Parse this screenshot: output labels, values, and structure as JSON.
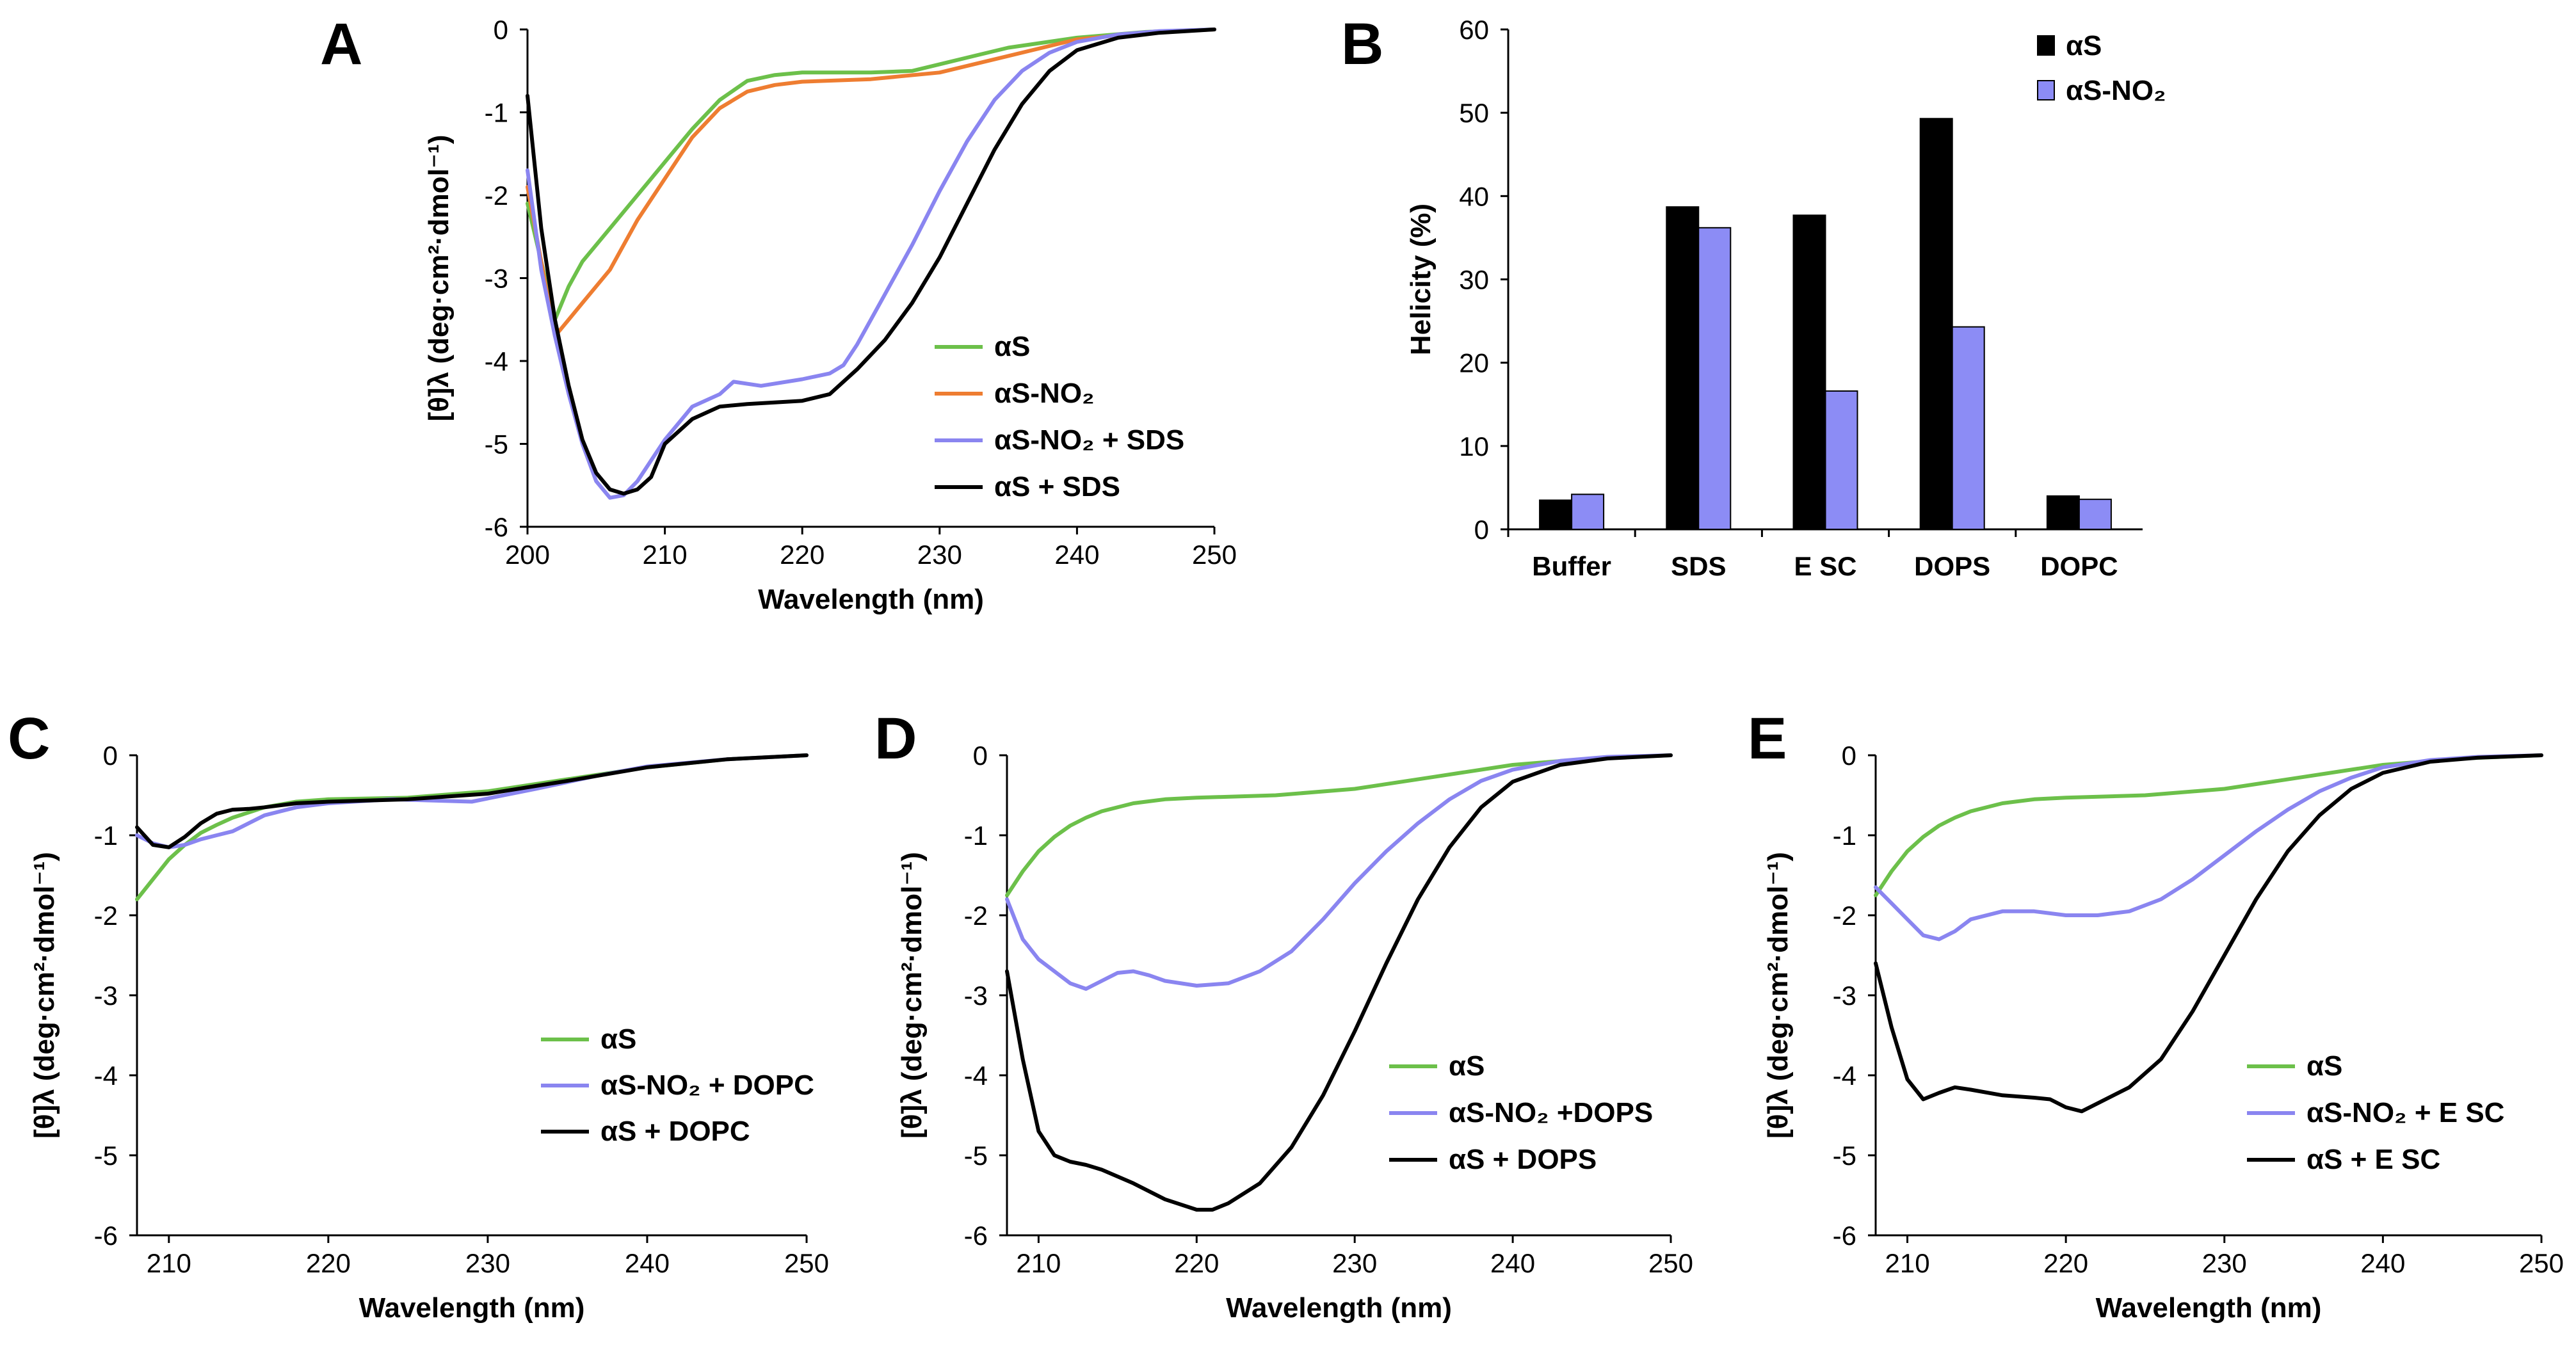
{
  "colors": {
    "green": "#6cc04a",
    "orange": "#ee7d31",
    "purple": "#8a85f0",
    "black": "#000000",
    "bar_black": "#000000",
    "bar_purple": "#8c8cf5"
  },
  "chart_data": [
    {
      "id": "A",
      "panel_label": "A",
      "type": "line",
      "title": "",
      "xlabel": "Wavelength (nm)",
      "ylabel": "[θ]λ (deg·cm²·dmol⁻¹)",
      "xlim": [
        200,
        250
      ],
      "ylim": [
        -6,
        0
      ],
      "xticks": [
        200,
        210,
        220,
        230,
        240,
        250
      ],
      "yticks": [
        0,
        -1,
        -2,
        -3,
        -4,
        -5,
        -6
      ],
      "legend_position": "lower-right",
      "series": [
        {
          "name": "αS",
          "color": "#6cc04a",
          "x": [
            200,
            202,
            203,
            204,
            206,
            208,
            210,
            212,
            214,
            216,
            218,
            220,
            225,
            228,
            230,
            235,
            240,
            245,
            250
          ],
          "y": [
            -2.1,
            -3.5,
            -3.1,
            -2.8,
            -2.4,
            -2.0,
            -1.6,
            -1.2,
            -0.85,
            -0.62,
            -0.55,
            -0.52,
            -0.52,
            -0.5,
            -0.42,
            -0.22,
            -0.1,
            -0.03,
            0
          ]
        },
        {
          "name": "αS-NO₂",
          "color": "#ee7d31",
          "x": [
            200,
            202,
            203,
            204,
            206,
            208,
            210,
            212,
            214,
            216,
            218,
            220,
            225,
            230,
            235,
            240,
            245,
            250
          ],
          "y": [
            -1.9,
            -3.7,
            -3.5,
            -3.3,
            -2.9,
            -2.3,
            -1.8,
            -1.3,
            -0.95,
            -0.75,
            -0.67,
            -0.63,
            -0.6,
            -0.52,
            -0.32,
            -0.12,
            -0.04,
            0
          ]
        },
        {
          "name": "αS-NO₂ + SDS",
          "color": "#8a85f0",
          "x": [
            200,
            201,
            202,
            203,
            204,
            205,
            206,
            207,
            208,
            209,
            210,
            212,
            214,
            215,
            217,
            220,
            222,
            223,
            224,
            226,
            228,
            230,
            232,
            234,
            236,
            238,
            240,
            243,
            246,
            250
          ],
          "y": [
            -1.7,
            -2.9,
            -3.7,
            -4.4,
            -5.0,
            -5.45,
            -5.65,
            -5.62,
            -5.45,
            -5.2,
            -4.95,
            -4.55,
            -4.4,
            -4.25,
            -4.3,
            -4.22,
            -4.15,
            -4.05,
            -3.8,
            -3.2,
            -2.6,
            -1.95,
            -1.35,
            -0.85,
            -0.5,
            -0.28,
            -0.15,
            -0.06,
            -0.02,
            0
          ]
        },
        {
          "name": "αS + SDS",
          "color": "#000000",
          "x": [
            200,
            201,
            202,
            203,
            204,
            205,
            206,
            207,
            208,
            209,
            210,
            212,
            214,
            216,
            218,
            220,
            222,
            224,
            226,
            228,
            230,
            232,
            234,
            236,
            238,
            240,
            243,
            246,
            250
          ],
          "y": [
            -0.8,
            -2.4,
            -3.5,
            -4.3,
            -4.95,
            -5.35,
            -5.55,
            -5.6,
            -5.55,
            -5.4,
            -5.0,
            -4.7,
            -4.55,
            -4.52,
            -4.5,
            -4.48,
            -4.4,
            -4.1,
            -3.75,
            -3.3,
            -2.75,
            -2.1,
            -1.45,
            -0.9,
            -0.5,
            -0.25,
            -0.1,
            -0.04,
            0
          ]
        }
      ]
    },
    {
      "id": "B",
      "panel_label": "B",
      "type": "bar",
      "title": "",
      "xlabel": "",
      "ylabel": "Helicity (%)",
      "ylim": [
        0,
        60
      ],
      "yticks": [
        0,
        10,
        20,
        30,
        40,
        50,
        60
      ],
      "legend_position": "top-right",
      "categories": [
        "Buffer",
        "SDS",
        "E SC",
        "DOPS",
        "DOPC"
      ],
      "series": [
        {
          "name": "αS",
          "color": "#000000",
          "values": [
            3.5,
            38.7,
            37.7,
            49.3,
            4.0
          ]
        },
        {
          "name": "αS-NO₂",
          "color": "#8c8cf5",
          "values": [
            4.2,
            36.2,
            16.6,
            24.3,
            3.6
          ]
        }
      ]
    },
    {
      "id": "C",
      "panel_label": "C",
      "type": "line",
      "title": "",
      "xlabel": "Wavelength (nm)",
      "ylabel": "[θ]λ (deg·cm²·dmol⁻¹)",
      "xlim": [
        208,
        250
      ],
      "ylim": [
        -6,
        0
      ],
      "xticks": [
        210,
        220,
        230,
        240,
        250
      ],
      "yticks": [
        0,
        -1,
        -2,
        -3,
        -4,
        -5,
        -6
      ],
      "legend_position": "lower-right",
      "series": [
        {
          "name": "αS",
          "color": "#6cc04a",
          "x": [
            208,
            209,
            210,
            211,
            212,
            213,
            214,
            216,
            218,
            220,
            225,
            230,
            235,
            240,
            245,
            250
          ],
          "y": [
            -1.8,
            -1.55,
            -1.3,
            -1.12,
            -0.97,
            -0.87,
            -0.78,
            -0.65,
            -0.58,
            -0.55,
            -0.53,
            -0.45,
            -0.3,
            -0.15,
            -0.05,
            0
          ]
        },
        {
          "name": "αS-NO₂ + DOPC",
          "color": "#8a85f0",
          "x": [
            208,
            209,
            210,
            211,
            212,
            213,
            214,
            215,
            216,
            218,
            220,
            224,
            229,
            233,
            237,
            240,
            245,
            250
          ],
          "y": [
            -1.0,
            -1.1,
            -1.15,
            -1.12,
            -1.05,
            -1.0,
            -0.95,
            -0.85,
            -0.75,
            -0.65,
            -0.6,
            -0.55,
            -0.58,
            -0.42,
            -0.25,
            -0.14,
            -0.05,
            0
          ]
        },
        {
          "name": "αS + DOPC",
          "color": "#000000",
          "x": [
            208,
            209,
            210,
            211,
            212,
            213,
            214,
            215,
            216,
            218,
            220,
            225,
            230,
            235,
            240,
            245,
            250
          ],
          "y": [
            -0.9,
            -1.12,
            -1.15,
            -1.02,
            -0.85,
            -0.73,
            -0.68,
            -0.67,
            -0.65,
            -0.6,
            -0.58,
            -0.55,
            -0.48,
            -0.32,
            -0.15,
            -0.05,
            0
          ]
        }
      ]
    },
    {
      "id": "D",
      "panel_label": "D",
      "type": "line",
      "title": "",
      "xlabel": "Wavelength (nm)",
      "ylabel": "[θ]λ (deg·cm²·dmol⁻¹)",
      "xlim": [
        208,
        250
      ],
      "ylim": [
        -6,
        0
      ],
      "xticks": [
        210,
        220,
        230,
        240,
        250
      ],
      "yticks": [
        0,
        -1,
        -2,
        -3,
        -4,
        -5,
        -6
      ],
      "legend_position": "lower-right",
      "series": [
        {
          "name": "αS",
          "color": "#6cc04a",
          "x": [
            208,
            209,
            210,
            211,
            212,
            213,
            214,
            216,
            218,
            220,
            225,
            230,
            235,
            240,
            245,
            250
          ],
          "y": [
            -1.75,
            -1.45,
            -1.2,
            -1.02,
            -0.88,
            -0.78,
            -0.7,
            -0.6,
            -0.55,
            -0.53,
            -0.5,
            -0.42,
            -0.27,
            -0.12,
            -0.04,
            0
          ]
        },
        {
          "name": "αS-NO₂ +DOPS",
          "color": "#8a85f0",
          "x": [
            208,
            209,
            210,
            211,
            212,
            213,
            214,
            215,
            216,
            217,
            218,
            220,
            222,
            224,
            226,
            228,
            230,
            232,
            234,
            236,
            238,
            240,
            243,
            246,
            250
          ],
          "y": [
            -1.8,
            -2.3,
            -2.55,
            -2.7,
            -2.85,
            -2.92,
            -2.82,
            -2.72,
            -2.7,
            -2.75,
            -2.82,
            -2.88,
            -2.85,
            -2.7,
            -2.45,
            -2.05,
            -1.6,
            -1.2,
            -0.85,
            -0.55,
            -0.32,
            -0.18,
            -0.07,
            -0.02,
            0
          ]
        },
        {
          "name": "αS + DOPS",
          "color": "#000000",
          "x": [
            208,
            209,
            210,
            211,
            212,
            213,
            214,
            216,
            218,
            220,
            221,
            222,
            224,
            226,
            228,
            230,
            232,
            234,
            236,
            238,
            240,
            243,
            246,
            250
          ],
          "y": [
            -2.7,
            -3.8,
            -4.7,
            -5.0,
            -5.08,
            -5.12,
            -5.18,
            -5.35,
            -5.55,
            -5.68,
            -5.68,
            -5.6,
            -5.35,
            -4.9,
            -4.25,
            -3.45,
            -2.6,
            -1.8,
            -1.15,
            -0.65,
            -0.33,
            -0.12,
            -0.04,
            0
          ]
        }
      ]
    },
    {
      "id": "E",
      "panel_label": "E",
      "type": "line",
      "title": "",
      "xlabel": "Wavelength (nm)",
      "ylabel": "[θ]λ (deg·cm²·dmol⁻¹)",
      "xlim": [
        208,
        250
      ],
      "ylim": [
        -6,
        0
      ],
      "xticks": [
        210,
        220,
        230,
        240,
        250
      ],
      "yticks": [
        0,
        -1,
        -2,
        -3,
        -4,
        -5,
        -6
      ],
      "legend_position": "lower-right",
      "series": [
        {
          "name": "αS",
          "color": "#6cc04a",
          "x": [
            208,
            209,
            210,
            211,
            212,
            213,
            214,
            216,
            218,
            220,
            225,
            230,
            235,
            240,
            245,
            250
          ],
          "y": [
            -1.75,
            -1.45,
            -1.2,
            -1.02,
            -0.88,
            -0.78,
            -0.7,
            -0.6,
            -0.55,
            -0.53,
            -0.5,
            -0.42,
            -0.27,
            -0.12,
            -0.04,
            0
          ]
        },
        {
          "name": "αS-NO₂ + E SC",
          "color": "#8a85f0",
          "x": [
            208,
            209,
            210,
            211,
            212,
            213,
            214,
            216,
            218,
            220,
            222,
            224,
            226,
            228,
            230,
            232,
            234,
            236,
            238,
            240,
            243,
            246,
            250
          ],
          "y": [
            -1.65,
            -1.85,
            -2.05,
            -2.25,
            -2.3,
            -2.2,
            -2.05,
            -1.95,
            -1.95,
            -2.0,
            -2.0,
            -1.95,
            -1.8,
            -1.55,
            -1.25,
            -0.95,
            -0.68,
            -0.45,
            -0.28,
            -0.15,
            -0.06,
            -0.02,
            0
          ]
        },
        {
          "name": "αS + E SC",
          "color": "#000000",
          "x": [
            208,
            209,
            210,
            211,
            212,
            213,
            214,
            216,
            218,
            219,
            220,
            221,
            222,
            224,
            226,
            228,
            230,
            232,
            234,
            236,
            238,
            240,
            243,
            246,
            250
          ],
          "y": [
            -2.6,
            -3.4,
            -4.05,
            -4.3,
            -4.22,
            -4.15,
            -4.18,
            -4.25,
            -4.28,
            -4.3,
            -4.4,
            -4.45,
            -4.35,
            -4.15,
            -3.8,
            -3.2,
            -2.5,
            -1.8,
            -1.2,
            -0.75,
            -0.42,
            -0.22,
            -0.08,
            -0.03,
            0
          ]
        }
      ]
    }
  ]
}
